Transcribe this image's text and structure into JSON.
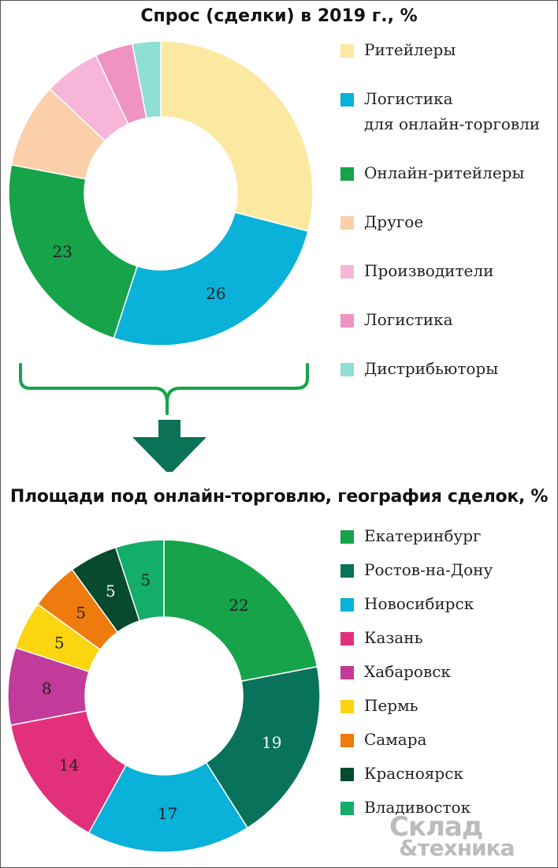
{
  "chart_data": [
    {
      "type": "pie",
      "title": "Спрос (сделки) в 2019 г., %",
      "categories": [
        "Ритейлеры",
        "Логистика для онлайн-торговли",
        "Онлайн-ритейлеры",
        "Другое",
        "Производители",
        "Логистика",
        "Дистрибьюторы"
      ],
      "legend_lines": [
        [
          "Ритейлеры"
        ],
        [
          "Логистика",
          "для онлайн-торговли"
        ],
        [
          "Онлайн-ритейлеры"
        ],
        [
          "Другое"
        ],
        [
          "Производители"
        ],
        [
          "Логистика"
        ],
        [
          "Дистрибьюторы"
        ]
      ],
      "values": [
        29,
        26,
        23,
        9,
        6,
        4,
        3
      ],
      "data_labels": [
        "",
        "26",
        "23",
        "",
        "",
        "",
        ""
      ],
      "colors": [
        "#fbe9a1",
        "#0ab1d8",
        "#16a34a",
        "#fbcfa9",
        "#f7b6d9",
        "#ef93c3",
        "#8fdfd3"
      ],
      "legend": "right"
    },
    {
      "type": "pie",
      "title": "Площади под онлайн-торговлю, география сделок, %",
      "categories": [
        "Екатеринбург",
        "Ростов-на-Дону",
        "Новосибирск",
        "Казань",
        "Хабаровск",
        "Пермь",
        "Самара",
        "Красноярск",
        "Владивосток"
      ],
      "legend_lines": [
        [
          "Екатеринбург"
        ],
        [
          "Ростов-на-Дону"
        ],
        [
          "Новосибирск"
        ],
        [
          "Казань"
        ],
        [
          "Хабаровск"
        ],
        [
          "Пермь"
        ],
        [
          "Самара"
        ],
        [
          "Красноярск"
        ],
        [
          "Владивосток"
        ]
      ],
      "values": [
        22,
        19,
        17,
        14,
        8,
        5,
        5,
        5,
        5
      ],
      "data_labels": [
        "22",
        "19",
        "17",
        "14",
        "8",
        "5",
        "5",
        "5",
        "5"
      ],
      "colors": [
        "#16a34a",
        "#08735a",
        "#0ab1d8",
        "#e3307a",
        "#c23a9a",
        "#fbd50f",
        "#ef7a0e",
        "#074a2e",
        "#14ad6b"
      ],
      "label_colors": [
        "#222222",
        "#ffffff",
        "#222222",
        "#222222",
        "#222222",
        "#222222",
        "#222222",
        "#ffffff",
        "#222222"
      ],
      "legend": "right"
    }
  ],
  "colors": {
    "brace": "#16a34a",
    "arrow": "#0b7257"
  },
  "logo": {
    "line1": "Склад",
    "line2": "&техника"
  }
}
